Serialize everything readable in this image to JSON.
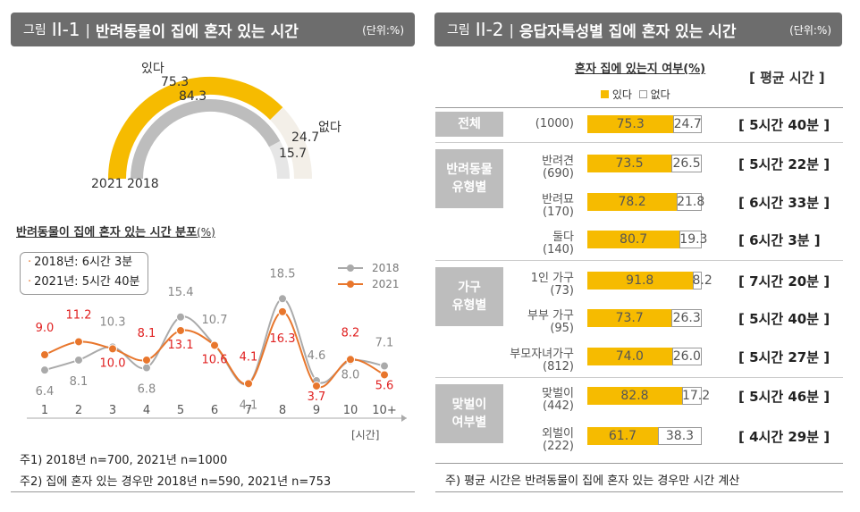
{
  "left_panel": {
    "header": {
      "fig": "그림",
      "num": "II-1",
      "title": "반려동물이 집에 혼자 있는 시간",
      "unit": "(단위:%)"
    },
    "donut": {
      "label_yes": "있다",
      "label_no": "없다",
      "val_2021_yes": "75.3",
      "val_2018_yes": "84.3",
      "val_2021_no": "24.7",
      "val_2018_no": "15.7",
      "year_2021": "2021",
      "year_2018": "2018"
    },
    "dist_title": "반려동물이 집에 혼자 있는 시간 분포",
    "dist_unit": "(%)",
    "avg_box": {
      "line_2018": "2018년: 6시간 3분",
      "line_2021": "2021년: 5시간 40분"
    },
    "x_unit": "[시간]",
    "notes": [
      "주1) 2018년 n=700, 2021년 n=1000",
      "주2) 집에 혼자 있는 경우만 2018년 n=590, 2021년 n=753"
    ]
  },
  "right_panel": {
    "header": {
      "fig": "그림",
      "num": "II-2",
      "title": "응답자특성별 집에 혼자 있는 시간",
      "unit": "(단위:%)"
    },
    "sub_title": "혼자 집에 있는지 여부(%)",
    "avg_title": "[ 평균 시간 ]",
    "legend_yes": "있다",
    "legend_no": "없다",
    "groups": [
      {
        "name_lines": [
          "전체"
        ],
        "rows": [
          {
            "label": "(1000)",
            "yes": 75.3,
            "no": 24.7,
            "avg": "[ 5시간 40분 ]"
          }
        ]
      },
      {
        "name_lines": [
          "반려동물",
          "유형별"
        ],
        "rows": [
          {
            "label": "반려견",
            "n": "(690)",
            "yes": 73.5,
            "no": 26.5,
            "avg": "[ 5시간 22분 ]"
          },
          {
            "label": "반려묘",
            "n": "(170)",
            "yes": 78.2,
            "no": 21.8,
            "avg": "[ 6시간 33분 ]"
          },
          {
            "label": "둘다",
            "n": "(140)",
            "yes": 80.7,
            "no": 19.3,
            "avg": "[ 6시간 3분 ]"
          }
        ]
      },
      {
        "name_lines": [
          "가구",
          "유형별"
        ],
        "rows": [
          {
            "label": "1인 가구",
            "n": "(73)",
            "yes": 91.8,
            "no": 8.2,
            "avg": "[ 7시간 20분 ]"
          },
          {
            "label": "부부 가구",
            "n": "(95)",
            "yes": 73.7,
            "no": 26.3,
            "avg": "[ 5시간 40분 ]"
          },
          {
            "label": "부모자녀가구",
            "n": "(812)",
            "yes": 74.0,
            "no": 26.0,
            "avg": "[ 5시간 27분 ]"
          }
        ]
      },
      {
        "name_lines": [
          "맞벌이",
          "여부별"
        ],
        "rows": [
          {
            "label": "맞벌이",
            "n": "(442)",
            "yes": 82.8,
            "no": 17.2,
            "avg": "[ 5시간 46분 ]"
          },
          {
            "label": "외벌이",
            "n": "(222)",
            "yes": 61.7,
            "no": 38.3,
            "avg": "[ 4시간 29분 ]"
          }
        ]
      }
    ],
    "note": "주) 평균 시간은 반려동물이 집에 혼자 있는 경우만 시간 계산"
  },
  "chart_data": [
    {
      "type": "pie",
      "subtype": "semi-donut",
      "categories": [
        "있다",
        "없다"
      ],
      "series": [
        {
          "name": "2021",
          "values": [
            75.3,
            24.7
          ]
        },
        {
          "name": "2018",
          "values": [
            84.3,
            15.7
          ]
        }
      ]
    },
    {
      "type": "line",
      "title": "반려동물이 집에 혼자 있는 시간 분포",
      "x": [
        "1",
        "2",
        "3",
        "4",
        "5",
        "6",
        "7",
        "8",
        "9",
        "10",
        "10+"
      ],
      "xlabel": "[시간]",
      "series": [
        {
          "name": "2018",
          "values": [
            6.4,
            8.1,
            10.3,
            6.8,
            15.4,
            10.7,
            4.1,
            18.5,
            4.6,
            8.0,
            7.1
          ],
          "color": "#aaaaaa"
        },
        {
          "name": "2021",
          "values": [
            9.0,
            11.2,
            10.0,
            8.1,
            13.1,
            10.6,
            4.1,
            16.3,
            3.7,
            8.2,
            5.6
          ],
          "color": "#e8762c"
        }
      ],
      "legend": "top-right"
    },
    {
      "type": "bar",
      "subtype": "stacked-horizontal",
      "categories": [
        "전체",
        "반려견",
        "반려묘",
        "둘다",
        "1인 가구",
        "부부 가구",
        "부모자녀가구",
        "맞벌이",
        "외벌이"
      ],
      "series": [
        {
          "name": "있다",
          "values": [
            75.3,
            73.5,
            78.2,
            80.7,
            91.8,
            73.7,
            74.0,
            82.8,
            61.7
          ],
          "color": "#f6bb00"
        },
        {
          "name": "없다",
          "values": [
            24.7,
            26.5,
            21.8,
            19.3,
            8.2,
            26.3,
            26.0,
            17.2,
            38.3
          ],
          "color": "#ffffff"
        }
      ]
    }
  ]
}
